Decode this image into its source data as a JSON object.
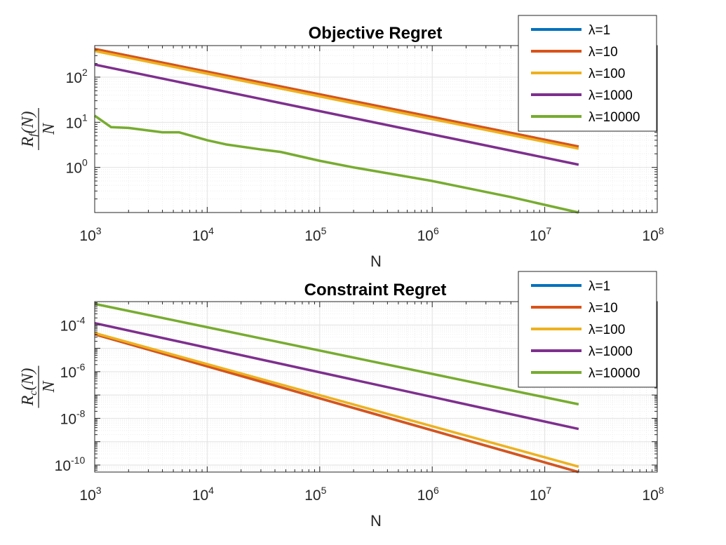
{
  "chart_data": [
    {
      "type": "line",
      "title": "Objective Regret",
      "xlabel": "N",
      "ylabel": {
        "num": "R",
        "sub": "f",
        "arg": "(N)",
        "den": "N"
      },
      "xscale": "log",
      "yscale": "log",
      "xlim": [
        1000,
        100000000
      ],
      "ylim": [
        0.1,
        500
      ],
      "grid": true,
      "legend_position": "top-right",
      "xticks": [
        {
          "base": "10",
          "exp": "3"
        },
        {
          "base": "10",
          "exp": "4"
        },
        {
          "base": "10",
          "exp": "5"
        },
        {
          "base": "10",
          "exp": "6"
        },
        {
          "base": "10",
          "exp": "7"
        },
        {
          "base": "10",
          "exp": "8"
        }
      ],
      "yticks": [
        {
          "base": "10",
          "exp": "0"
        },
        {
          "base": "10",
          "exp": "1"
        },
        {
          "base": "10",
          "exp": "2"
        }
      ],
      "series": [
        {
          "name": "λ=1",
          "color": "#0072BD",
          "x": [
            1000,
            20000000
          ],
          "y": [
            420,
            2.9
          ]
        },
        {
          "name": "λ=10",
          "color": "#D95319",
          "x": [
            1000,
            20000000
          ],
          "y": [
            420,
            2.9
          ]
        },
        {
          "name": "λ=100",
          "color": "#EDB120",
          "x": [
            1000,
            20000000
          ],
          "y": [
            380,
            2.6
          ]
        },
        {
          "name": "λ=1000",
          "color": "#7E2F8E",
          "x": [
            1000,
            20000000
          ],
          "y": [
            190,
            1.15
          ]
        },
        {
          "name": "λ=10000",
          "color": "#77AC30",
          "x": [
            1000,
            1400,
            2000,
            4000,
            5600,
            10000,
            15000,
            30000,
            45000,
            100000,
            200000,
            1000000,
            5000000,
            20000000
          ],
          "y": [
            14,
            7.8,
            7.5,
            6.0,
            6.0,
            4.0,
            3.2,
            2.5,
            2.2,
            1.4,
            1.0,
            0.5,
            0.22,
            0.1
          ]
        }
      ]
    },
    {
      "type": "line",
      "title": "Constraint Regret",
      "xlabel": "N",
      "ylabel": {
        "num": "R",
        "sub": "c",
        "arg": "(N)",
        "den": "N"
      },
      "xscale": "log",
      "yscale": "log",
      "xlim": [
        1000,
        100000000
      ],
      "ylim": [
        5e-11,
        0.001
      ],
      "grid": true,
      "legend_position": "top-right",
      "xticks": [
        {
          "base": "10",
          "exp": "3"
        },
        {
          "base": "10",
          "exp": "4"
        },
        {
          "base": "10",
          "exp": "5"
        },
        {
          "base": "10",
          "exp": "6"
        },
        {
          "base": "10",
          "exp": "7"
        },
        {
          "base": "10",
          "exp": "8"
        }
      ],
      "yticks": [
        {
          "base": "10",
          "exp": "-10"
        },
        {
          "base": "10",
          "exp": "-8"
        },
        {
          "base": "10",
          "exp": "-6"
        },
        {
          "base": "10",
          "exp": "-4"
        }
      ],
      "series": [
        {
          "name": "λ=1",
          "color": "#0072BD",
          "x": [
            1000,
            20000000
          ],
          "y": [
            4e-05,
            5e-11
          ]
        },
        {
          "name": "λ=10",
          "color": "#D95319",
          "x": [
            1000,
            20000000
          ],
          "y": [
            4e-05,
            5e-11
          ]
        },
        {
          "name": "λ=100",
          "color": "#EDB120",
          "x": [
            1000,
            20000000
          ],
          "y": [
            4.5e-05,
            8.5e-11
          ]
        },
        {
          "name": "λ=1000",
          "color": "#7E2F8E",
          "x": [
            1000,
            20000000
          ],
          "y": [
            0.00012,
            3.5e-09
          ]
        },
        {
          "name": "λ=10000",
          "color": "#77AC30",
          "x": [
            1000,
            20000000
          ],
          "y": [
            0.0008,
            4e-08
          ]
        }
      ]
    }
  ]
}
